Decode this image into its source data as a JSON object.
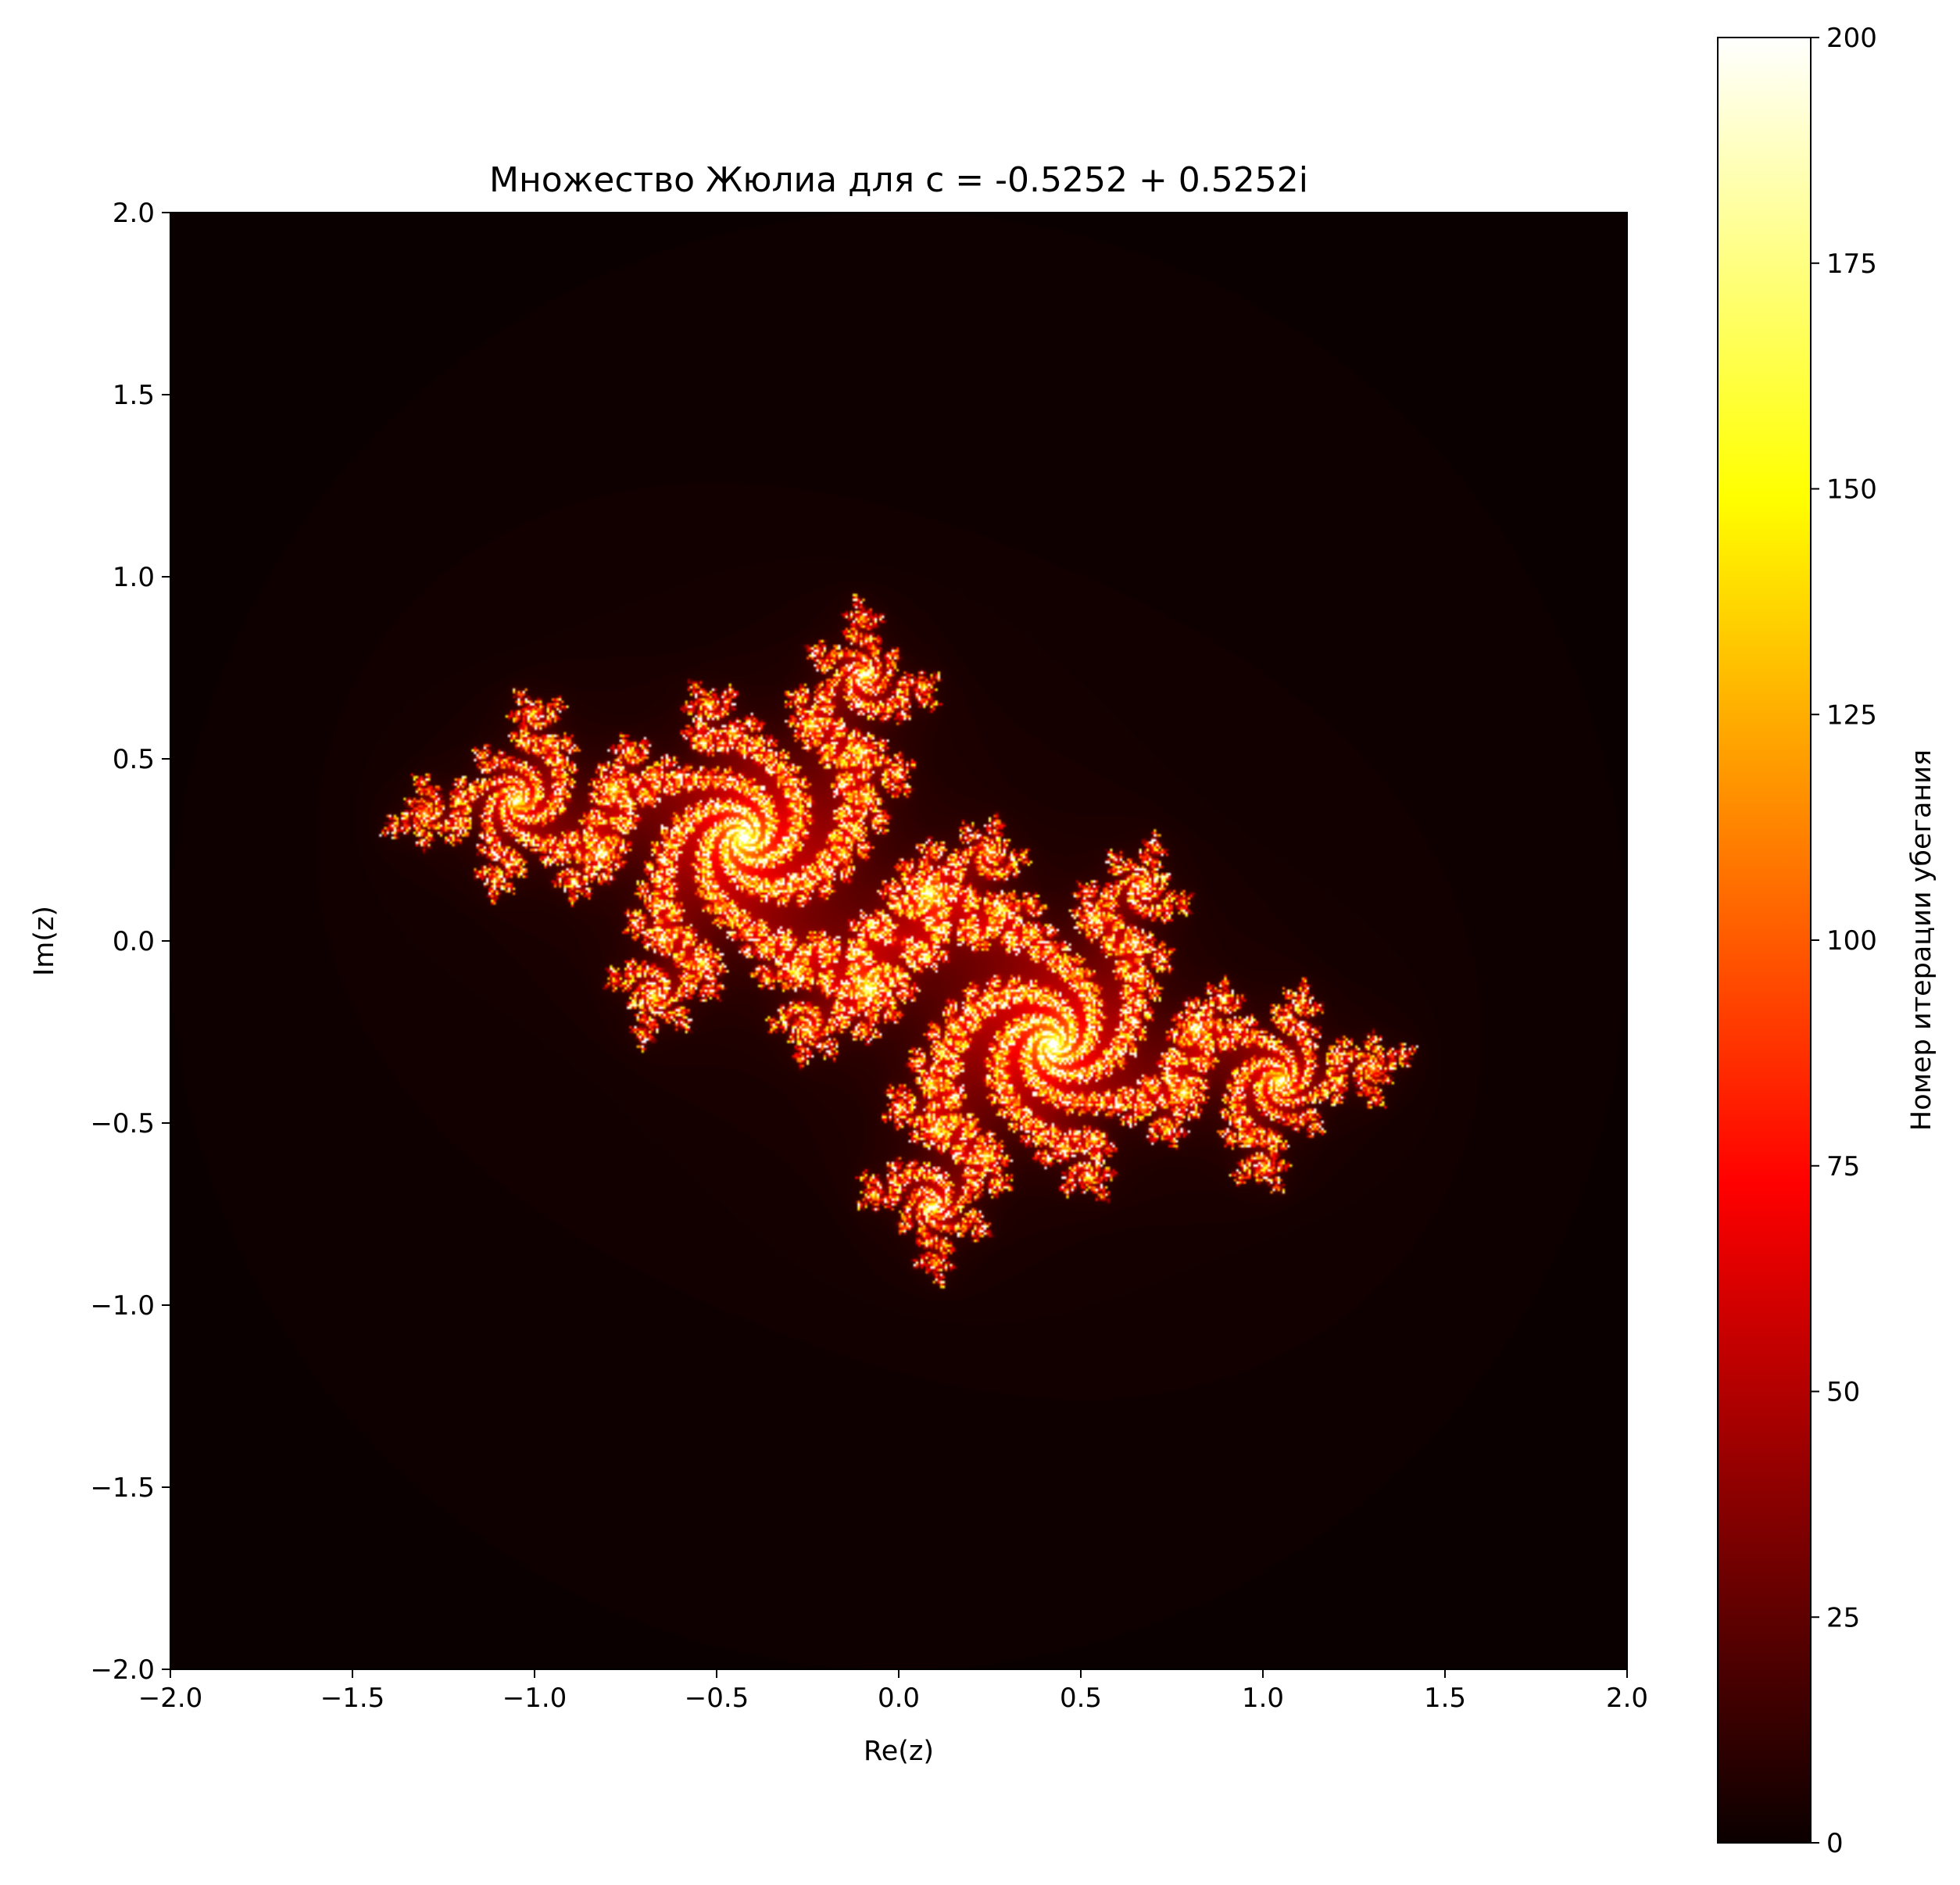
{
  "chart_data": {
    "type": "heatmap",
    "title": "Множество Жюлиа для c = -0.5252 + 0.5252i",
    "xlabel": "Re(z)",
    "ylabel": "Im(z)",
    "xlim": [
      -2.0,
      2.0
    ],
    "ylim": [
      -2.0,
      2.0
    ],
    "x_ticks": [
      "−2.0",
      "−1.5",
      "−1.0",
      "−0.5",
      "0.0",
      "0.5",
      "1.0",
      "1.5",
      "2.0"
    ],
    "y_ticks": [
      "−2.0",
      "−1.5",
      "−1.0",
      "−0.5",
      "0.0",
      "0.5",
      "1.0",
      "1.5",
      "2.0"
    ],
    "c": {
      "re": -0.5252,
      "im": 0.5252
    },
    "max_iter": 200,
    "grid": false,
    "colormap": "hot",
    "colormap_stops": [
      "#0b0000",
      "#ff0000",
      "#ffff00",
      "#ffffff"
    ],
    "colorbar": {
      "label": "Номер итерации убегания",
      "range": [
        0,
        200
      ],
      "ticks": [
        "0",
        "25",
        "50",
        "75",
        "100",
        "125",
        "150",
        "175",
        "200"
      ]
    }
  }
}
